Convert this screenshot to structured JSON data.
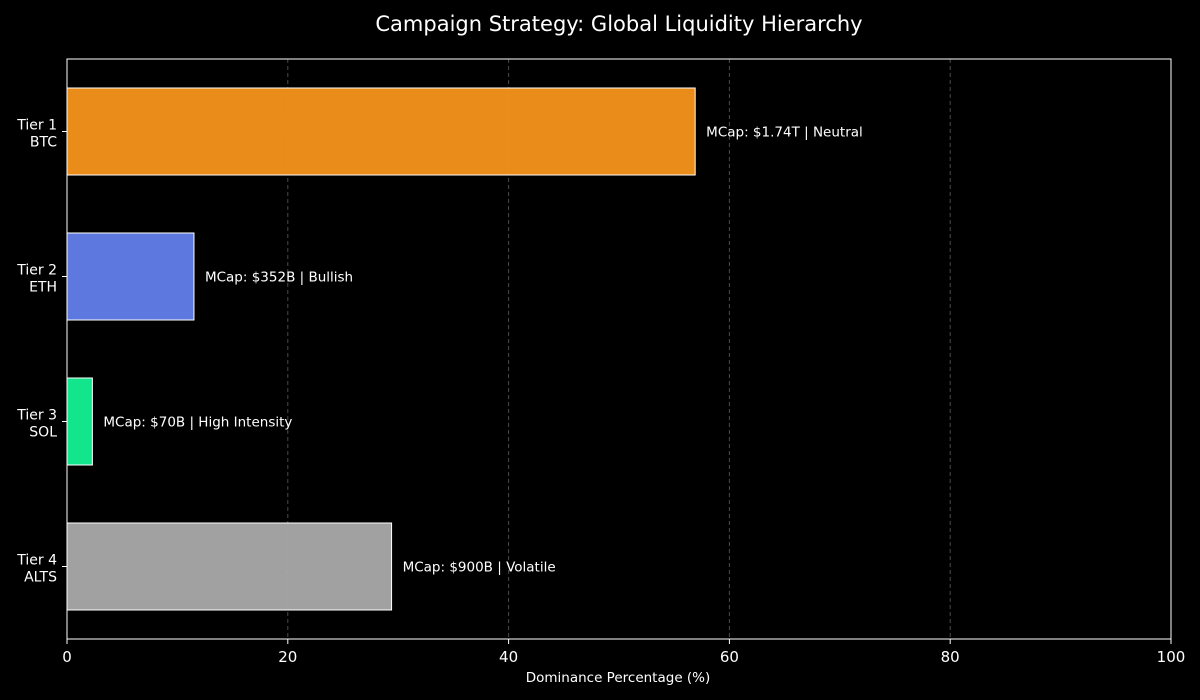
{
  "chart_data": {
    "type": "bar",
    "orientation": "horizontal",
    "title": "Campaign Strategy: Global Liquidity Hierarchy",
    "xlabel": "Dominance Percentage (%)",
    "ylabel": "",
    "xlim": [
      0,
      100
    ],
    "xticks": [
      0,
      20,
      40,
      60,
      80,
      100
    ],
    "grid": "vertical dashed",
    "categories": [
      {
        "tier": "Tier 1",
        "asset": "BTC"
      },
      {
        "tier": "Tier 2",
        "asset": "ETH"
      },
      {
        "tier": "Tier 3",
        "asset": "SOL"
      },
      {
        "tier": "Tier 4",
        "asset": "ALTS"
      }
    ],
    "values": [
      56.9,
      11.5,
      2.3,
      29.4
    ],
    "data_labels": [
      "MCap: $1.74T | Neutral",
      "MCap: $352B | Bullish",
      "MCap: $70B | High Intensity",
      "MCap: $900B | Volatile"
    ],
    "colors": [
      "#f7931a",
      "#627eea",
      "#14f195",
      "#aaaaaa"
    ]
  }
}
